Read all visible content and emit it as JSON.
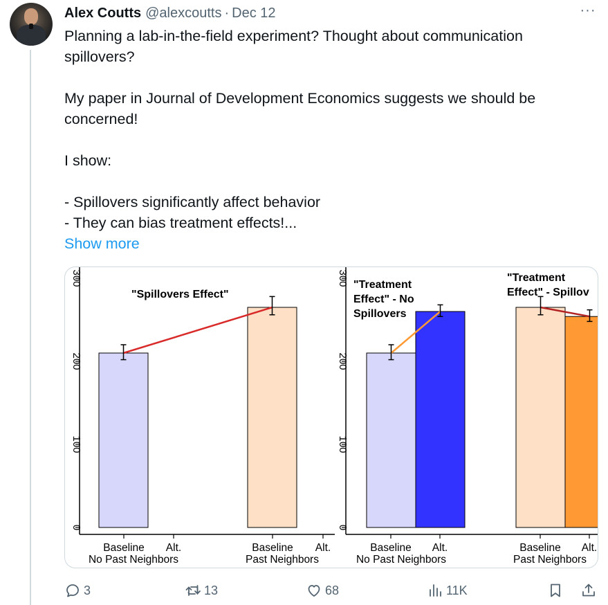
{
  "author": {
    "name": "Alex Coutts",
    "handle": "@alexcoutts",
    "separator": "·",
    "date": "Dec 12"
  },
  "more_icon": "···",
  "tweet": {
    "paragraphs": [
      "Planning a lab-in-the-field experiment? Thought about communication spillovers?",
      "My paper in Journal of Development Economics suggests we should be concerned!",
      "I show:",
      "- Spillovers significantly affect behavior",
      "- They can bias treatment effects!..."
    ],
    "show_more": "Show more"
  },
  "chart_data": [
    {
      "type": "bar",
      "title": "\"Spillovers Effect\"",
      "groups": [
        "No Past Neighbors",
        "Past Neighbors"
      ],
      "categories": [
        "Baseline",
        "Alt.",
        "Baseline",
        "Alt."
      ],
      "values": [
        210,
        null,
        265,
        null
      ],
      "error": [
        [
          202,
          220
        ],
        null,
        [
          256,
          278
        ],
        null
      ],
      "colors": [
        "#d7d7fb",
        null,
        "#fde0c5",
        null
      ],
      "connector": {
        "from": 0,
        "to": 2,
        "color": "#d92a2a"
      },
      "ytick_labels": [
        "0",
        "100",
        "200",
        "300"
      ],
      "ylim": [
        0,
        300
      ]
    },
    {
      "type": "bar",
      "title_lines": [
        "\"Treatment",
        "Effect\" - No",
        "Spillovers"
      ],
      "title2_lines": [
        "\"Treatment",
        "Effect\" - Spillov"
      ],
      "groups": [
        "No Past Neighbors",
        "Past Neighbors"
      ],
      "categories": [
        "Baseline",
        "Alt.",
        "Baseline",
        "Alt."
      ],
      "values": [
        210,
        260,
        265,
        254
      ],
      "error": [
        [
          202,
          220
        ],
        [
          254,
          268
        ],
        [
          256,
          278
        ],
        [
          248,
          262
        ]
      ],
      "colors": [
        "#d7d7fb",
        "#3333ff",
        "#fde0c5",
        "#ff9933"
      ],
      "connectors": [
        {
          "from": 0,
          "to": 1,
          "color": "#ff9933"
        },
        {
          "from": 2,
          "to": 3,
          "color": "#b22222"
        }
      ],
      "ytick_labels": [
        "0",
        "100",
        "200",
        "300"
      ],
      "ylim": [
        0,
        300
      ]
    }
  ],
  "actions": {
    "reply": {
      "icon": "reply-icon",
      "count": "3"
    },
    "repost": {
      "icon": "repost-icon",
      "count": "13"
    },
    "like": {
      "icon": "heart-icon",
      "count": "68"
    },
    "views": {
      "icon": "views-icon",
      "count": "11K"
    },
    "bookmark": {
      "icon": "bookmark-icon"
    },
    "share": {
      "icon": "share-icon"
    }
  },
  "colors": {
    "text": "#0f1419",
    "secondary": "#536471",
    "link": "#1d9bf0",
    "border": "#cfd9de"
  }
}
